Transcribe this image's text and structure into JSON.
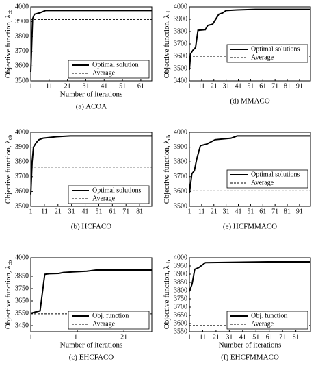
{
  "chart_data": [
    {
      "type": "line",
      "caption": "(a) ACOA",
      "ylabel": "Objective function, λ",
      "ylabel_sub": "cb",
      "xlabel": "Number of iterations",
      "xlim": [
        1,
        67
      ],
      "xticks": [
        1,
        11,
        21,
        31,
        41,
        51,
        61
      ],
      "ylim": [
        3500,
        4000
      ],
      "yticks": [
        3500,
        3600,
        3700,
        3800,
        3900,
        4000
      ],
      "legend": "lower right",
      "series": [
        {
          "name": "Optimal solution",
          "color": "#000000",
          "dash": false,
          "x": [
            1,
            2,
            3,
            6,
            9,
            67
          ],
          "values": [
            3560,
            3920,
            3950,
            3960,
            3975,
            3975
          ]
        },
        {
          "name": "Average",
          "color": "#000000",
          "dash": true,
          "x": [
            1,
            67
          ],
          "values": [
            3915,
            3915
          ]
        }
      ]
    },
    {
      "type": "line",
      "caption": "(b) HCFACO",
      "ylabel": "Objective function, λ",
      "ylabel_sub": "cb",
      "xlim": [
        1,
        90
      ],
      "xticks": [
        1,
        11,
        21,
        31,
        41,
        51,
        61,
        71,
        81
      ],
      "ylim": [
        3500,
        4000
      ],
      "yticks": [
        3500,
        3600,
        3700,
        3800,
        3900,
        4000
      ],
      "legend": "lower right",
      "series": [
        {
          "name": "Optimal solutions",
          "color": "#000000",
          "dash": false,
          "x": [
            1,
            2,
            3,
            5,
            7,
            10,
            20,
            30,
            90
          ],
          "values": [
            3580,
            3800,
            3900,
            3930,
            3950,
            3960,
            3970,
            3975,
            3975
          ]
        },
        {
          "name": "Average",
          "color": "#000000",
          "dash": true,
          "x": [
            1,
            90
          ],
          "values": [
            3765,
            3765
          ]
        }
      ]
    },
    {
      "type": "line",
      "caption": "(c) EHCFACO",
      "ylabel": "Objective function, λ",
      "ylabel_sub": "cb",
      "xlabel": "Number of iterations",
      "xlim": [
        1,
        27
      ],
      "xticks": [
        1,
        11,
        21
      ],
      "ylim": [
        3400,
        4000
      ],
      "yticks": [
        3450,
        3550,
        3650,
        3750,
        3850,
        4000
      ],
      "legend": "lower right",
      "series": [
        {
          "name": "Obj. function",
          "color": "#000000",
          "dash": false,
          "x": [
            1,
            3,
            4,
            5,
            7,
            8,
            10,
            13,
            15,
            27
          ],
          "values": [
            3550,
            3570,
            3865,
            3870,
            3872,
            3880,
            3885,
            3890,
            3900,
            3900
          ]
        },
        {
          "name": "Average",
          "color": "#000000",
          "dash": true,
          "x": [
            1,
            27
          ],
          "values": [
            3545,
            3545
          ]
        }
      ]
    },
    {
      "type": "line",
      "caption": "(d) MMACO",
      "ylabel": "Objective function, λ",
      "ylabel_sub": "cb",
      "xlim": [
        1,
        100
      ],
      "xticks": [
        1,
        11,
        21,
        31,
        41,
        51,
        61,
        71,
        81,
        91
      ],
      "ylim": [
        3400,
        4000
      ],
      "yticks": [
        3400,
        3500,
        3600,
        3700,
        3800,
        3900,
        4000
      ],
      "legend": "center right",
      "series": [
        {
          "name": "Optimal solutions",
          "color": "#000000",
          "dash": false,
          "x": [
            1,
            2,
            4,
            6,
            8,
            14,
            16,
            20,
            25,
            28,
            31,
            40,
            55,
            100
          ],
          "values": [
            3490,
            3620,
            3650,
            3670,
            3810,
            3815,
            3850,
            3860,
            3940,
            3950,
            3970,
            3975,
            3980,
            3980
          ]
        },
        {
          "name": "Average",
          "color": "#000000",
          "dash": true,
          "x": [
            1,
            100
          ],
          "values": [
            3600,
            3600
          ]
        }
      ]
    },
    {
      "type": "line",
      "caption": "(e) HCFMMACO",
      "ylabel": "Objective function, λ",
      "ylabel_sub": "cb",
      "xlim": [
        1,
        100
      ],
      "xticks": [
        1,
        11,
        21,
        31,
        41,
        51,
        61,
        71,
        81,
        91
      ],
      "ylim": [
        3500,
        4000
      ],
      "yticks": [
        3500,
        3600,
        3700,
        3800,
        3900,
        4000
      ],
      "legend": "center right",
      "series": [
        {
          "name": "Optimal solutions",
          "color": "#000000",
          "dash": false,
          "x": [
            1,
            3,
            5,
            7,
            10,
            15,
            22,
            35,
            40,
            100
          ],
          "values": [
            3590,
            3720,
            3740,
            3820,
            3910,
            3920,
            3950,
            3960,
            3975,
            3975
          ]
        },
        {
          "name": "Average",
          "color": "#000000",
          "dash": true,
          "x": [
            1,
            100
          ],
          "values": [
            3605,
            3605
          ]
        }
      ]
    },
    {
      "type": "line",
      "caption": "(f) EHCFMMACO",
      "ylabel": "Objective function, λ",
      "ylabel_sub": "cb",
      "xlabel": "Number of iterations",
      "xlim": [
        1,
        92
      ],
      "xticks": [
        1,
        11,
        21,
        31,
        41,
        51,
        61,
        71,
        81
      ],
      "ylim": [
        3550,
        4000
      ],
      "yticks": [
        3550,
        3600,
        3650,
        3700,
        3750,
        3800,
        3850,
        3900,
        3950,
        4000
      ],
      "legend": "lower right",
      "series": [
        {
          "name": "Obj. function",
          "color": "#000000",
          "dash": false,
          "x": [
            1,
            3,
            5,
            8,
            13,
            60,
            92
          ],
          "values": [
            3795,
            3840,
            3930,
            3940,
            3970,
            3975,
            3975
          ]
        },
        {
          "name": "Average",
          "color": "#000000",
          "dash": true,
          "x": [
            1,
            92
          ],
          "values": [
            3588,
            3588
          ]
        }
      ]
    }
  ]
}
